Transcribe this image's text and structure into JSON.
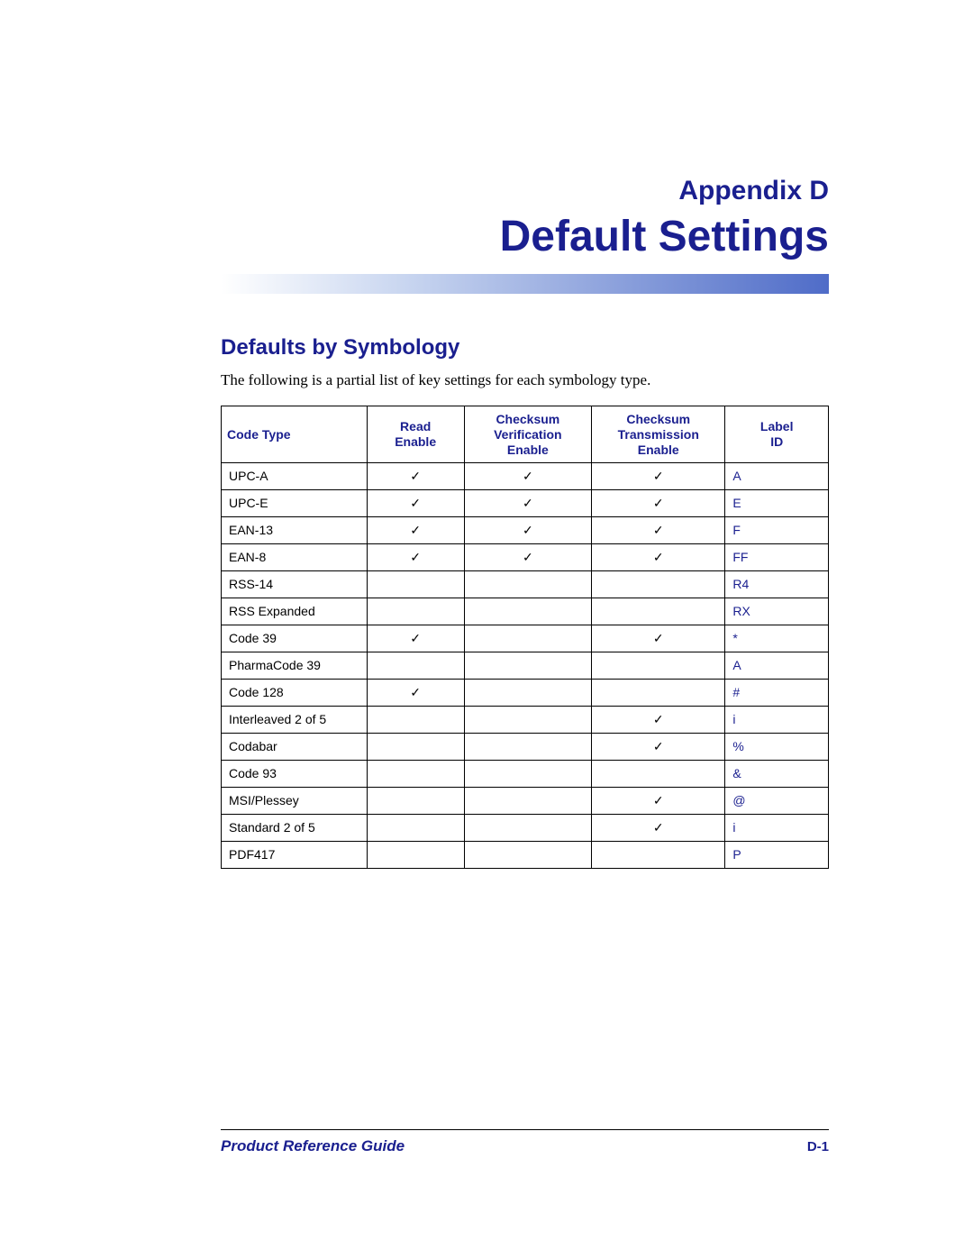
{
  "colors": {
    "brand_blue": "#1a1f8f",
    "black": "#000000",
    "white": "#ffffff",
    "gradient_start": "#ffffff",
    "gradient_mid": "#c9d6f0",
    "gradient_end": "#4f6cc8"
  },
  "typography": {
    "appendix_fontsize": 30,
    "title_fontsize": 48,
    "section_heading_fontsize": 24,
    "body_fontsize": 17,
    "table_fontsize": 14,
    "footer_left_fontsize": 17,
    "footer_right_fontsize": 15,
    "heading_font": "Verdana",
    "body_font": "Georgia",
    "table_font": "Arial"
  },
  "header": {
    "appendix": "Appendix D",
    "title": "Default Settings"
  },
  "section": {
    "heading": "Defaults by Symbology",
    "intro": "The following is a partial list of key settings for each symbology type."
  },
  "table": {
    "type": "table",
    "check_symbol": "✓",
    "column_widths_pct": [
      24,
      16,
      21,
      22,
      17
    ],
    "columns": [
      "Code Type",
      "Read Enable",
      "Checksum Verification Enable",
      "Checksum Transmission Enable",
      "Label ID"
    ],
    "rows": [
      {
        "code": "UPC-A",
        "read": true,
        "verif": true,
        "trans": true,
        "label": "A"
      },
      {
        "code": "UPC-E",
        "read": true,
        "verif": true,
        "trans": true,
        "label": "E"
      },
      {
        "code": "EAN-13",
        "read": true,
        "verif": true,
        "trans": true,
        "label": "F"
      },
      {
        "code": "EAN-8",
        "read": true,
        "verif": true,
        "trans": true,
        "label": "FF"
      },
      {
        "code": "RSS-14",
        "read": false,
        "verif": false,
        "trans": false,
        "label": "R4"
      },
      {
        "code": "RSS Expanded",
        "read": false,
        "verif": false,
        "trans": false,
        "label": "RX"
      },
      {
        "code": "Code 39",
        "read": true,
        "verif": false,
        "trans": true,
        "label": "*"
      },
      {
        "code": "PharmaCode 39",
        "read": false,
        "verif": false,
        "trans": false,
        "label": "A"
      },
      {
        "code": "Code 128",
        "read": true,
        "verif": false,
        "trans": false,
        "label": "#"
      },
      {
        "code": "Interleaved 2 of 5",
        "read": false,
        "verif": false,
        "trans": true,
        "label": "i"
      },
      {
        "code": "Codabar",
        "read": false,
        "verif": false,
        "trans": true,
        "label": "%"
      },
      {
        "code": "Code 93",
        "read": false,
        "verif": false,
        "trans": false,
        "label": "&"
      },
      {
        "code": "MSI/Plessey",
        "read": false,
        "verif": false,
        "trans": true,
        "label": "@"
      },
      {
        "code": "Standard 2 of 5",
        "read": false,
        "verif": false,
        "trans": true,
        "label": "i"
      },
      {
        "code": "PDF417",
        "read": false,
        "verif": false,
        "trans": false,
        "label": "P"
      }
    ]
  },
  "footer": {
    "left": "Product Reference Guide",
    "right": "D-1"
  }
}
